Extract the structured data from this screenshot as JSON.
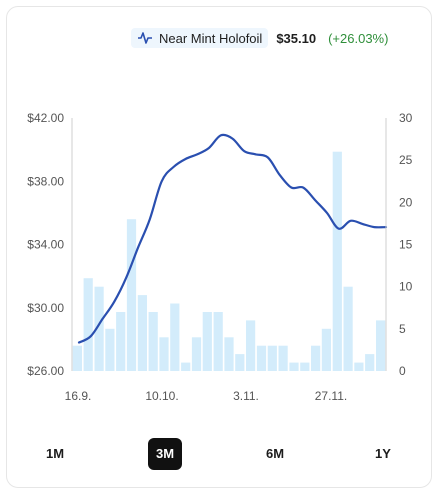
{
  "legend": {
    "label": "Near Mint Holofoil",
    "price": "$35.10",
    "change": "(+26.03%)",
    "icon": "line-chart-icon",
    "line_color": "#2a4fb0",
    "bar_color": "#d3ecfb",
    "change_color": "#2f8f3a"
  },
  "ranges": [
    {
      "label": "1M",
      "active": false
    },
    {
      "label": "3M",
      "active": true
    },
    {
      "label": "6M",
      "active": false
    },
    {
      "label": "1Y",
      "active": false
    }
  ],
  "chart_data": {
    "type": "line+bar",
    "x_tick_labels": [
      "16.9.",
      "10.10.",
      "3.11.",
      "27.11."
    ],
    "y_left": {
      "ticks": [
        "$42.00",
        "$38.00",
        "$34.00",
        "$30.00",
        "$26.00"
      ],
      "range": [
        26,
        42
      ]
    },
    "y_right": {
      "ticks": [
        "30",
        "25",
        "20",
        "15",
        "10",
        "5",
        "0"
      ],
      "range": [
        0,
        30
      ]
    },
    "grid": false,
    "line_series": {
      "points": [
        [
          0,
          27.8
        ],
        [
          1,
          28.2
        ],
        [
          2,
          29.3
        ],
        [
          3,
          30.4
        ],
        [
          4,
          31.9
        ],
        [
          5,
          33.8
        ],
        [
          6,
          35.6
        ],
        [
          7,
          38.0
        ],
        [
          8,
          38.9
        ],
        [
          9,
          39.4
        ],
        [
          10,
          39.7
        ],
        [
          11,
          40.1
        ],
        [
          12,
          40.9
        ],
        [
          13,
          40.7
        ],
        [
          14,
          39.9
        ],
        [
          15,
          39.7
        ],
        [
          16,
          39.5
        ],
        [
          17,
          38.4
        ],
        [
          18,
          37.6
        ],
        [
          19,
          37.6
        ],
        [
          20,
          36.8
        ],
        [
          21,
          36.0
        ],
        [
          22,
          35.0
        ],
        [
          23,
          35.5
        ],
        [
          24,
          35.3
        ],
        [
          25,
          35.1
        ],
        [
          26,
          35.1
        ]
      ]
    },
    "bar_series": {
      "values": [
        3,
        11,
        10,
        5,
        7,
        18,
        9,
        7,
        4,
        8,
        1,
        4,
        7,
        7,
        4,
        2,
        6,
        3,
        3,
        3,
        1,
        1,
        3,
        5,
        26,
        10,
        1,
        2,
        6
      ]
    }
  }
}
